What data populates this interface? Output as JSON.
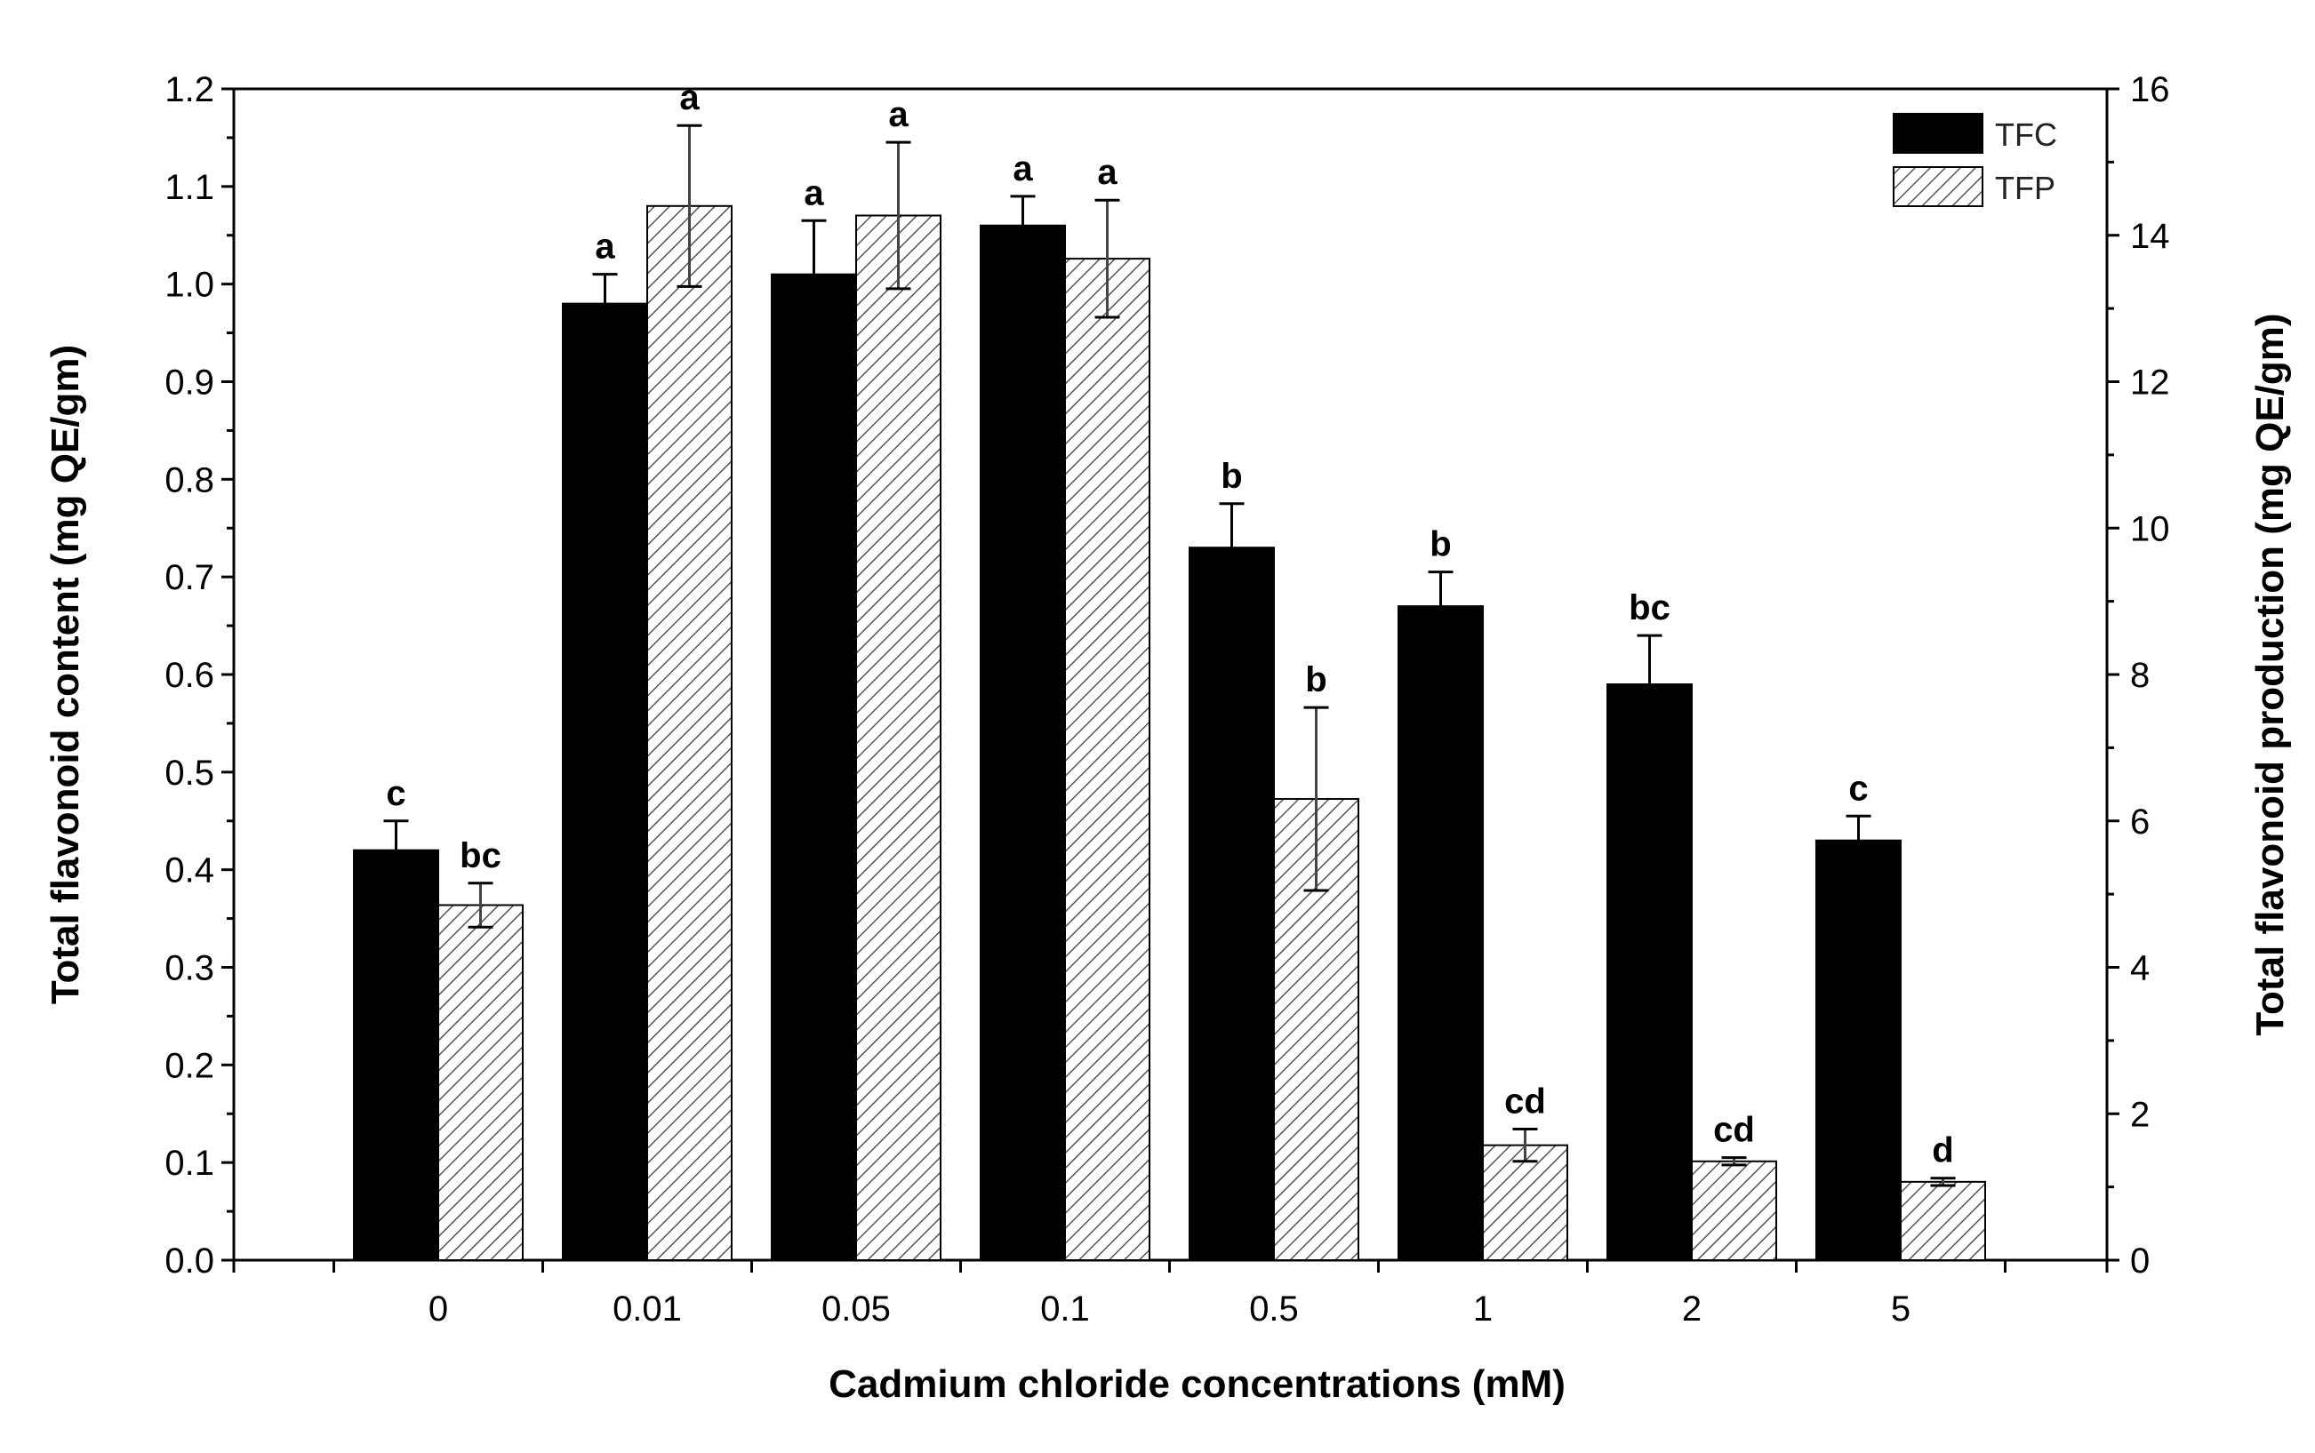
{
  "chart_data": {
    "type": "bar",
    "categories": [
      "0",
      "0.01",
      "0.05",
      "0.1",
      "0.5",
      "1",
      "2",
      "5"
    ],
    "xlabel": "Cadmium chloride concentrations (mM)",
    "ylabel": "Total flavonoid content (mg QE/gm)",
    "y2label": "Total flavonoid production (mg QE/gm)",
    "ylim": [
      0,
      1.2
    ],
    "y2lim": [
      0,
      16
    ],
    "yticks": [
      "0.0",
      "0.1",
      "0.2",
      "0.3",
      "0.4",
      "0.5",
      "0.6",
      "0.7",
      "0.8",
      "0.9",
      "1.0",
      "1.1",
      "1.2"
    ],
    "y2ticks": [
      "0",
      "2",
      "4",
      "6",
      "8",
      "10",
      "12",
      "14",
      "16"
    ],
    "legend_position": "top-right",
    "series": [
      {
        "name": "TFC",
        "axis": "left",
        "color": "#000000",
        "pattern": "solid",
        "values": [
          0.42,
          0.98,
          1.01,
          1.06,
          0.73,
          0.67,
          0.59,
          0.43
        ],
        "errors": [
          0.03,
          0.03,
          0.055,
          0.03,
          0.045,
          0.035,
          0.05,
          0.025
        ],
        "significance": [
          "c",
          "a",
          "a",
          "a",
          "b",
          "b",
          "bc",
          "c"
        ]
      },
      {
        "name": "TFP",
        "axis": "right",
        "color": "#555555",
        "pattern": "hatched",
        "values": [
          4.85,
          14.4,
          14.27,
          13.68,
          6.3,
          1.57,
          1.35,
          1.07
        ],
        "errors": [
          0.3,
          1.1,
          1.0,
          0.8,
          1.25,
          0.22,
          0.05,
          0.05
        ],
        "significance": [
          "bc",
          "a",
          "a",
          "a",
          "b",
          "cd",
          "cd",
          "d"
        ]
      }
    ]
  }
}
